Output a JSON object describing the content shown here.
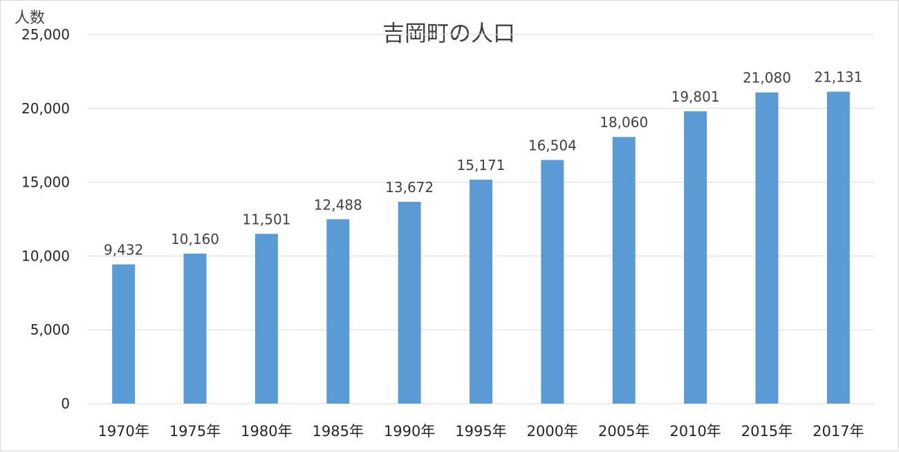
{
  "chart_data": {
    "type": "bar",
    "title": "吉岡町の人口",
    "ylabel": "人数",
    "xlabel": "",
    "categories": [
      "1970年",
      "1975年",
      "1980年",
      "1985年",
      "1990年",
      "1995年",
      "2000年",
      "2005年",
      "2010年",
      "2015年",
      "2017年"
    ],
    "values": [
      9432,
      10160,
      11501,
      12488,
      13672,
      15171,
      16504,
      18060,
      19801,
      21080,
      21131
    ],
    "data_labels": [
      "9,432",
      "10,160",
      "11,501",
      "12,488",
      "13,672",
      "15,171",
      "16,504",
      "18,060",
      "19,801",
      "21,080",
      "21,131"
    ],
    "ylim": [
      0,
      25000
    ],
    "yticks": [
      0,
      5000,
      10000,
      15000,
      20000,
      25000
    ],
    "ytick_labels": [
      "0",
      "5,000",
      "10,000",
      "15,000",
      "20,000",
      "25,000"
    ],
    "grid": true,
    "legend": "none",
    "bar_color": "#5b9bd5",
    "grid_color": "#d9d9d9"
  }
}
